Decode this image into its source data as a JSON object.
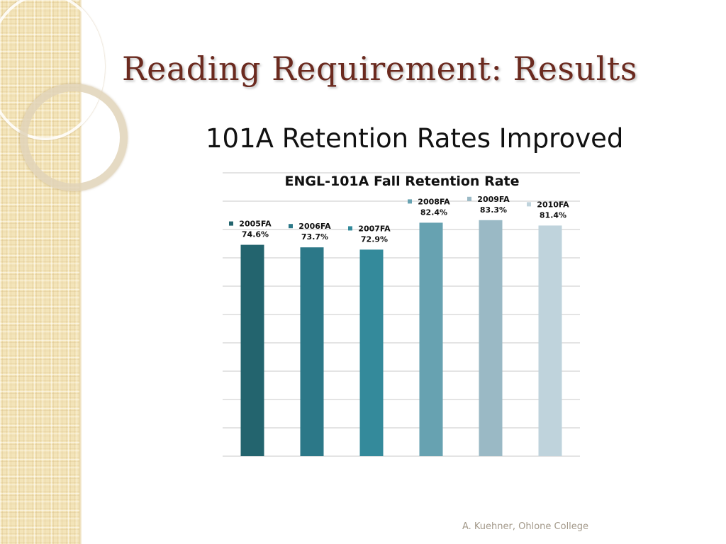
{
  "slide": {
    "title": "Reading Requirement: Results",
    "subtitle": "101A Retention Rates Improved",
    "footer": "A. Kuehner, Ohlone College"
  },
  "chart_data": {
    "type": "bar",
    "title": "ENGL-101A Fall Retention Rate",
    "xlabel": "",
    "ylabel": "",
    "ylim": [
      0,
      100
    ],
    "grid": true,
    "legend": "none",
    "categories": [
      "2005FA",
      "2006FA",
      "2007FA",
      "2008FA",
      "2009FA",
      "2010FA"
    ],
    "values": [
      74.6,
      73.7,
      72.9,
      82.4,
      83.3,
      81.4
    ],
    "value_labels": [
      "74.6%",
      "73.7%",
      "72.9%",
      "82.4%",
      "83.3%",
      "81.4%"
    ],
    "colors": [
      "#23646e",
      "#2c7888",
      "#348a9b",
      "#67a2b1",
      "#9ab9c5",
      "#bfd3dc"
    ]
  }
}
